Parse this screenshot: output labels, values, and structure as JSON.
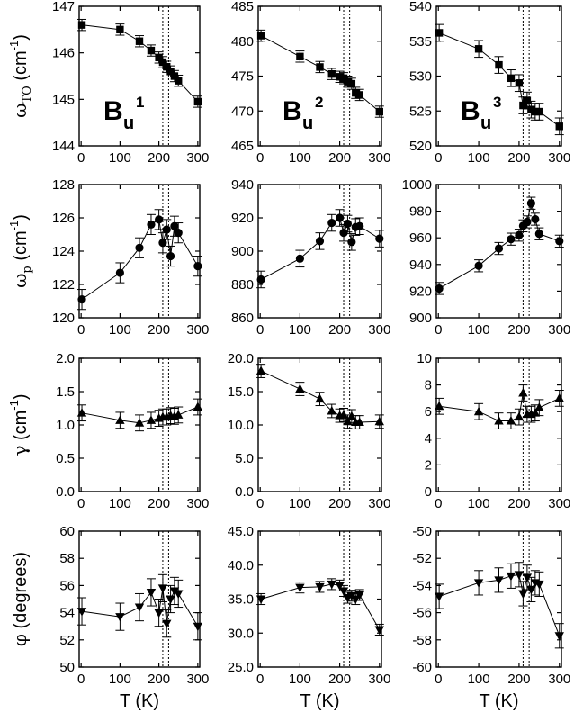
{
  "chart_data": [
    {
      "type": "scatter",
      "row": 0,
      "col": 0,
      "marker": "square",
      "mode_label": "B",
      "mode_sub": "u",
      "mode_sup": "1",
      "ylabel_main": "ω",
      "ylabel_sub": "TO",
      "ylabel_unit": "(cm",
      "ylabel_sup": "-1",
      "ylabel_close": ")",
      "ylim": [
        144,
        147
      ],
      "yticks": [
        "144",
        "145",
        "146",
        "147"
      ],
      "xlim": [
        -5,
        305
      ],
      "xticks": [
        "0",
        "100",
        "200",
        "300"
      ],
      "vlines": [
        210,
        225
      ],
      "x": [
        2,
        100,
        150,
        180,
        200,
        210,
        220,
        230,
        240,
        250,
        300
      ],
      "y": [
        146.6,
        146.5,
        146.25,
        146.05,
        145.9,
        145.8,
        145.7,
        145.6,
        145.5,
        145.4,
        144.95
      ],
      "err": [
        0.12,
        0.12,
        0.12,
        0.12,
        0.12,
        0.12,
        0.12,
        0.12,
        0.12,
        0.12,
        0.12
      ]
    },
    {
      "type": "scatter",
      "row": 0,
      "col": 1,
      "marker": "square",
      "mode_label": "B",
      "mode_sub": "u",
      "mode_sup": "2",
      "ylim": [
        465,
        485
      ],
      "yticks": [
        "465",
        "470",
        "475",
        "480",
        "485"
      ],
      "xlim": [
        -5,
        305
      ],
      "xticks": [
        "0",
        "100",
        "200",
        "300"
      ],
      "vlines": [
        210,
        225
      ],
      "x": [
        2,
        100,
        150,
        180,
        200,
        210,
        220,
        230,
        240,
        250,
        300
      ],
      "y": [
        480.8,
        477.8,
        476.3,
        475.3,
        474.9,
        474.7,
        474.2,
        473.9,
        472.6,
        472.3,
        469.9
      ],
      "err": [
        0.8,
        0.8,
        0.8,
        0.8,
        0.8,
        0.8,
        0.8,
        0.8,
        0.8,
        0.8,
        0.8
      ]
    },
    {
      "type": "scatter",
      "row": 0,
      "col": 2,
      "marker": "square",
      "mode_label": "B",
      "mode_sub": "u",
      "mode_sup": "3",
      "ylim": [
        520,
        540
      ],
      "yticks": [
        "520",
        "525",
        "530",
        "535",
        "540"
      ],
      "xlim": [
        -5,
        305
      ],
      "xticks": [
        "0",
        "100",
        "200",
        "300"
      ],
      "vlines": [
        210,
        225
      ],
      "x": [
        2,
        100,
        150,
        180,
        200,
        210,
        220,
        230,
        240,
        250,
        300
      ],
      "y": [
        536.2,
        533.9,
        531.6,
        529.7,
        529.0,
        525.8,
        526.5,
        525.2,
        524.9,
        524.9,
        522.8
      ],
      "err": [
        1.2,
        1.2,
        1.2,
        1.2,
        1.2,
        1.2,
        1.2,
        1.2,
        1.2,
        1.2,
        1.2
      ]
    },
    {
      "type": "scatter",
      "row": 1,
      "col": 0,
      "marker": "circle",
      "ylabel_main": "ω",
      "ylabel_sub": "p",
      "ylabel_unit": "(cm",
      "ylabel_sup": "-1",
      "ylabel_close": ")",
      "ylim": [
        120,
        128
      ],
      "yticks": [
        "120",
        "122",
        "124",
        "126",
        "128"
      ],
      "xlim": [
        -5,
        305
      ],
      "xticks": [
        "0",
        "100",
        "200",
        "300"
      ],
      "vlines": [
        210,
        225
      ],
      "x": [
        2,
        100,
        150,
        180,
        200,
        210,
        220,
        230,
        240,
        250,
        300
      ],
      "y": [
        121.1,
        122.7,
        124.2,
        125.6,
        125.9,
        124.5,
        125.3,
        123.7,
        125.5,
        125.1,
        123.1
      ],
      "err": [
        0.6,
        0.6,
        0.6,
        0.6,
        0.6,
        0.6,
        0.6,
        0.6,
        0.6,
        0.6,
        0.6
      ]
    },
    {
      "type": "scatter",
      "row": 1,
      "col": 1,
      "marker": "circle",
      "ylim": [
        860,
        940
      ],
      "yticks": [
        "860",
        "880",
        "900",
        "920",
        "940"
      ],
      "xlim": [
        -5,
        305
      ],
      "xticks": [
        "0",
        "100",
        "200",
        "300"
      ],
      "vlines": [
        210,
        225
      ],
      "x": [
        2,
        100,
        150,
        180,
        200,
        210,
        220,
        230,
        240,
        250,
        300
      ],
      "y": [
        883,
        895.5,
        906,
        917,
        920,
        911,
        916.5,
        905.5,
        914.5,
        915,
        907.5
      ],
      "err": [
        5,
        5,
        5,
        5,
        5,
        5,
        5,
        5,
        5,
        5,
        5
      ]
    },
    {
      "type": "scatter",
      "row": 1,
      "col": 2,
      "marker": "circle",
      "ylim": [
        900,
        1000
      ],
      "yticks": [
        "900",
        "920",
        "940",
        "960",
        "980",
        "1000"
      ],
      "xlim": [
        -5,
        305
      ],
      "xticks": [
        "0",
        "100",
        "200",
        "300"
      ],
      "vlines": [
        210,
        225
      ],
      "x": [
        2,
        100,
        150,
        180,
        200,
        210,
        220,
        230,
        240,
        250,
        300
      ],
      "y": [
        922,
        939,
        952,
        959,
        962,
        969,
        972,
        986,
        974,
        963,
        957.5
      ],
      "err": [
        4.5,
        4.5,
        4.5,
        4.5,
        4.5,
        4.5,
        4.5,
        4.5,
        4.5,
        4.5,
        4.5
      ]
    },
    {
      "type": "scatter",
      "row": 2,
      "col": 0,
      "marker": "triangle-up",
      "ylabel_main": "γ",
      "ylabel_sub": "",
      "ylabel_unit": "(cm",
      "ylabel_sup": "-1",
      "ylabel_close": ")",
      "ylim": [
        0,
        2
      ],
      "yticks": [
        "0.0",
        "0.5",
        "1.0",
        "1.5",
        "2.0"
      ],
      "xlim": [
        -5,
        305
      ],
      "xticks": [
        "0",
        "100",
        "200",
        "300"
      ],
      "vlines": [
        210,
        225
      ],
      "x": [
        2,
        100,
        150,
        180,
        200,
        210,
        220,
        230,
        240,
        250,
        300
      ],
      "y": [
        1.18,
        1.07,
        1.03,
        1.07,
        1.1,
        1.12,
        1.12,
        1.14,
        1.13,
        1.15,
        1.27
      ],
      "err": [
        0.12,
        0.12,
        0.12,
        0.12,
        0.12,
        0.12,
        0.12,
        0.12,
        0.12,
        0.12,
        0.12
      ]
    },
    {
      "type": "scatter",
      "row": 2,
      "col": 1,
      "marker": "triangle-up",
      "ylim": [
        0,
        20
      ],
      "yticks": [
        "0.0",
        "5.0",
        "10.0",
        "15.0",
        "20.0"
      ],
      "xlim": [
        -5,
        305
      ],
      "xticks": [
        "0",
        "100",
        "200",
        "300"
      ],
      "vlines": [
        210,
        225
      ],
      "x": [
        2,
        100,
        150,
        180,
        200,
        210,
        220,
        230,
        240,
        250,
        300
      ],
      "y": [
        18.1,
        15.4,
        13.9,
        12.1,
        11.4,
        11.5,
        10.5,
        11.3,
        10.4,
        10.4,
        10.5
      ],
      "err": [
        1.0,
        1.0,
        1.0,
        1.0,
        1.0,
        1.0,
        1.0,
        1.0,
        1.0,
        1.0,
        1.0
      ]
    },
    {
      "type": "scatter",
      "row": 2,
      "col": 2,
      "marker": "triangle-up",
      "ylim": [
        0,
        10
      ],
      "yticks": [
        "0",
        "2",
        "4",
        "6",
        "8",
        "10"
      ],
      "xlim": [
        -5,
        305
      ],
      "xticks": [
        "0",
        "100",
        "200",
        "300"
      ],
      "vlines": [
        210,
        225
      ],
      "x": [
        2,
        100,
        150,
        180,
        200,
        210,
        220,
        230,
        240,
        250,
        300
      ],
      "y": [
        6.4,
        6.0,
        5.3,
        5.3,
        5.6,
        7.4,
        5.8,
        5.8,
        5.9,
        6.3,
        7.0
      ],
      "err": [
        0.6,
        0.6,
        0.6,
        0.6,
        0.6,
        0.6,
        0.6,
        0.6,
        0.6,
        0.6,
        0.6
      ]
    },
    {
      "type": "scatter",
      "row": 3,
      "col": 0,
      "marker": "triangle-down",
      "ylabel_main": "φ",
      "ylabel_sub": "",
      "ylabel_unit": "(degrees)",
      "ylabel_sup": "",
      "ylabel_close": "",
      "ylim": [
        50,
        60
      ],
      "yticks": [
        "50",
        "52",
        "54",
        "56",
        "58",
        "60"
      ],
      "xlim": [
        -5,
        305
      ],
      "xticks": [
        "0",
        "100",
        "200",
        "300"
      ],
      "vlines": [
        210,
        225
      ],
      "x": [
        2,
        100,
        150,
        180,
        200,
        210,
        220,
        230,
        240,
        250,
        300
      ],
      "y": [
        54.1,
        53.7,
        54.4,
        55.5,
        54.0,
        55.8,
        53.2,
        55.0,
        55.6,
        55.4,
        53.0
      ],
      "err": [
        1.0,
        1.0,
        1.0,
        1.0,
        1.0,
        1.0,
        1.0,
        1.0,
        1.0,
        1.0,
        1.0
      ]
    },
    {
      "type": "scatter",
      "row": 3,
      "col": 1,
      "marker": "triangle-down",
      "ylim": [
        25,
        45
      ],
      "yticks": [
        "25.0",
        "30.0",
        "35.0",
        "40.0",
        "45.0"
      ],
      "xlim": [
        -5,
        305
      ],
      "xticks": [
        "0",
        "100",
        "200",
        "300"
      ],
      "vlines": [
        210,
        225
      ],
      "x": [
        2,
        100,
        150,
        180,
        200,
        210,
        220,
        230,
        240,
        250,
        300
      ],
      "y": [
        35.0,
        36.7,
        36.8,
        37.2,
        37.0,
        36.2,
        35.2,
        35.5,
        35.0,
        35.6,
        30.5
      ],
      "err": [
        0.8,
        0.8,
        0.8,
        0.8,
        0.8,
        0.8,
        0.8,
        0.8,
        0.8,
        0.8,
        0.8
      ]
    },
    {
      "type": "scatter",
      "row": 3,
      "col": 2,
      "marker": "triangle-down",
      "ylim": [
        -60,
        -50
      ],
      "yticks": [
        "-60",
        "-58",
        "-56",
        "-54",
        "-52",
        "-50"
      ],
      "xlim": [
        -5,
        305
      ],
      "xticks": [
        "0",
        "100",
        "200",
        "300"
      ],
      "vlines": [
        210,
        225
      ],
      "x": [
        2,
        100,
        150,
        180,
        200,
        210,
        220,
        230,
        240,
        250,
        300
      ],
      "y": [
        -54.8,
        -53.8,
        -53.6,
        -53.3,
        -53.2,
        -54.6,
        -53.4,
        -54.3,
        -53.8,
        -53.9,
        -57.7
      ],
      "err": [
        0.9,
        0.9,
        0.9,
        0.9,
        0.9,
        0.9,
        0.9,
        0.9,
        0.9,
        0.9,
        0.9
      ]
    }
  ],
  "xaxis": {
    "main": "T",
    "unit": "(K)"
  }
}
